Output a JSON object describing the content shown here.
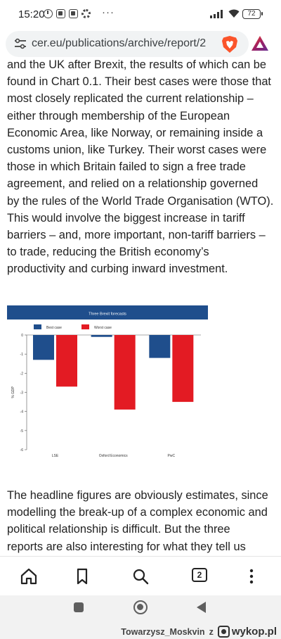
{
  "status_bar": {
    "time": "15:20",
    "overflow": "···",
    "battery": "72",
    "icons": [
      "alarm-icon",
      "notification-icon",
      "notification-icon",
      "settings-icon"
    ]
  },
  "browser": {
    "url": "cer.eu/publications/archive/report/2",
    "tab_count": "2"
  },
  "article": {
    "para1_lines": [
      "and the UK after Brexit, the results of which can be",
      "found in Chart 0.1. Their best cases were those that",
      "most closely replicated the current relationship –",
      "either through membership of the European",
      "Economic Area, like Norway, or remaining inside a",
      "customs union, like Turkey. Their worst cases were",
      "those in which Britain failed to sign a free trade",
      "agreement, and relied on a relationship governed",
      "by the rules of the World Trade Organisation (WTO).",
      "This would involve the biggest increase in tariff",
      "barriers – and, more important, non-tariff barriers –",
      "to trade, reducing the British economy’s",
      "productivity and curbing inward investment."
    ],
    "para2_lines": [
      "The headline figures are obviously estimates, since",
      "modelling the break-up of a complex economic and",
      "political relationship is difficult. But the three",
      "reports are also interesting for what they tell us"
    ]
  },
  "chart_data": {
    "type": "bar",
    "title": "Three Brexit forecasts",
    "categories": [
      "LSE",
      "Oxford Economics",
      "PwC"
    ],
    "series": [
      {
        "name": "Best case",
        "values": [
          -1.3,
          -0.1,
          -1.2
        ],
        "color": "#1f4e8c"
      },
      {
        "name": "Worst case",
        "values": [
          -2.7,
          -3.9,
          -3.5
        ],
        "color": "#e31b23"
      }
    ],
    "ylabel": "% GDP",
    "ylim": [
      -6,
      0
    ],
    "yticks": [
      "0",
      "-1",
      "-2",
      "-3",
      "-4",
      "-5",
      "-6"
    ],
    "legend_position": "top",
    "title_bar_color": "#1f4e8c"
  },
  "watermark": {
    "user": "Towarzysz_Moskvin",
    "via": "z",
    "site": "wykop.pl"
  }
}
